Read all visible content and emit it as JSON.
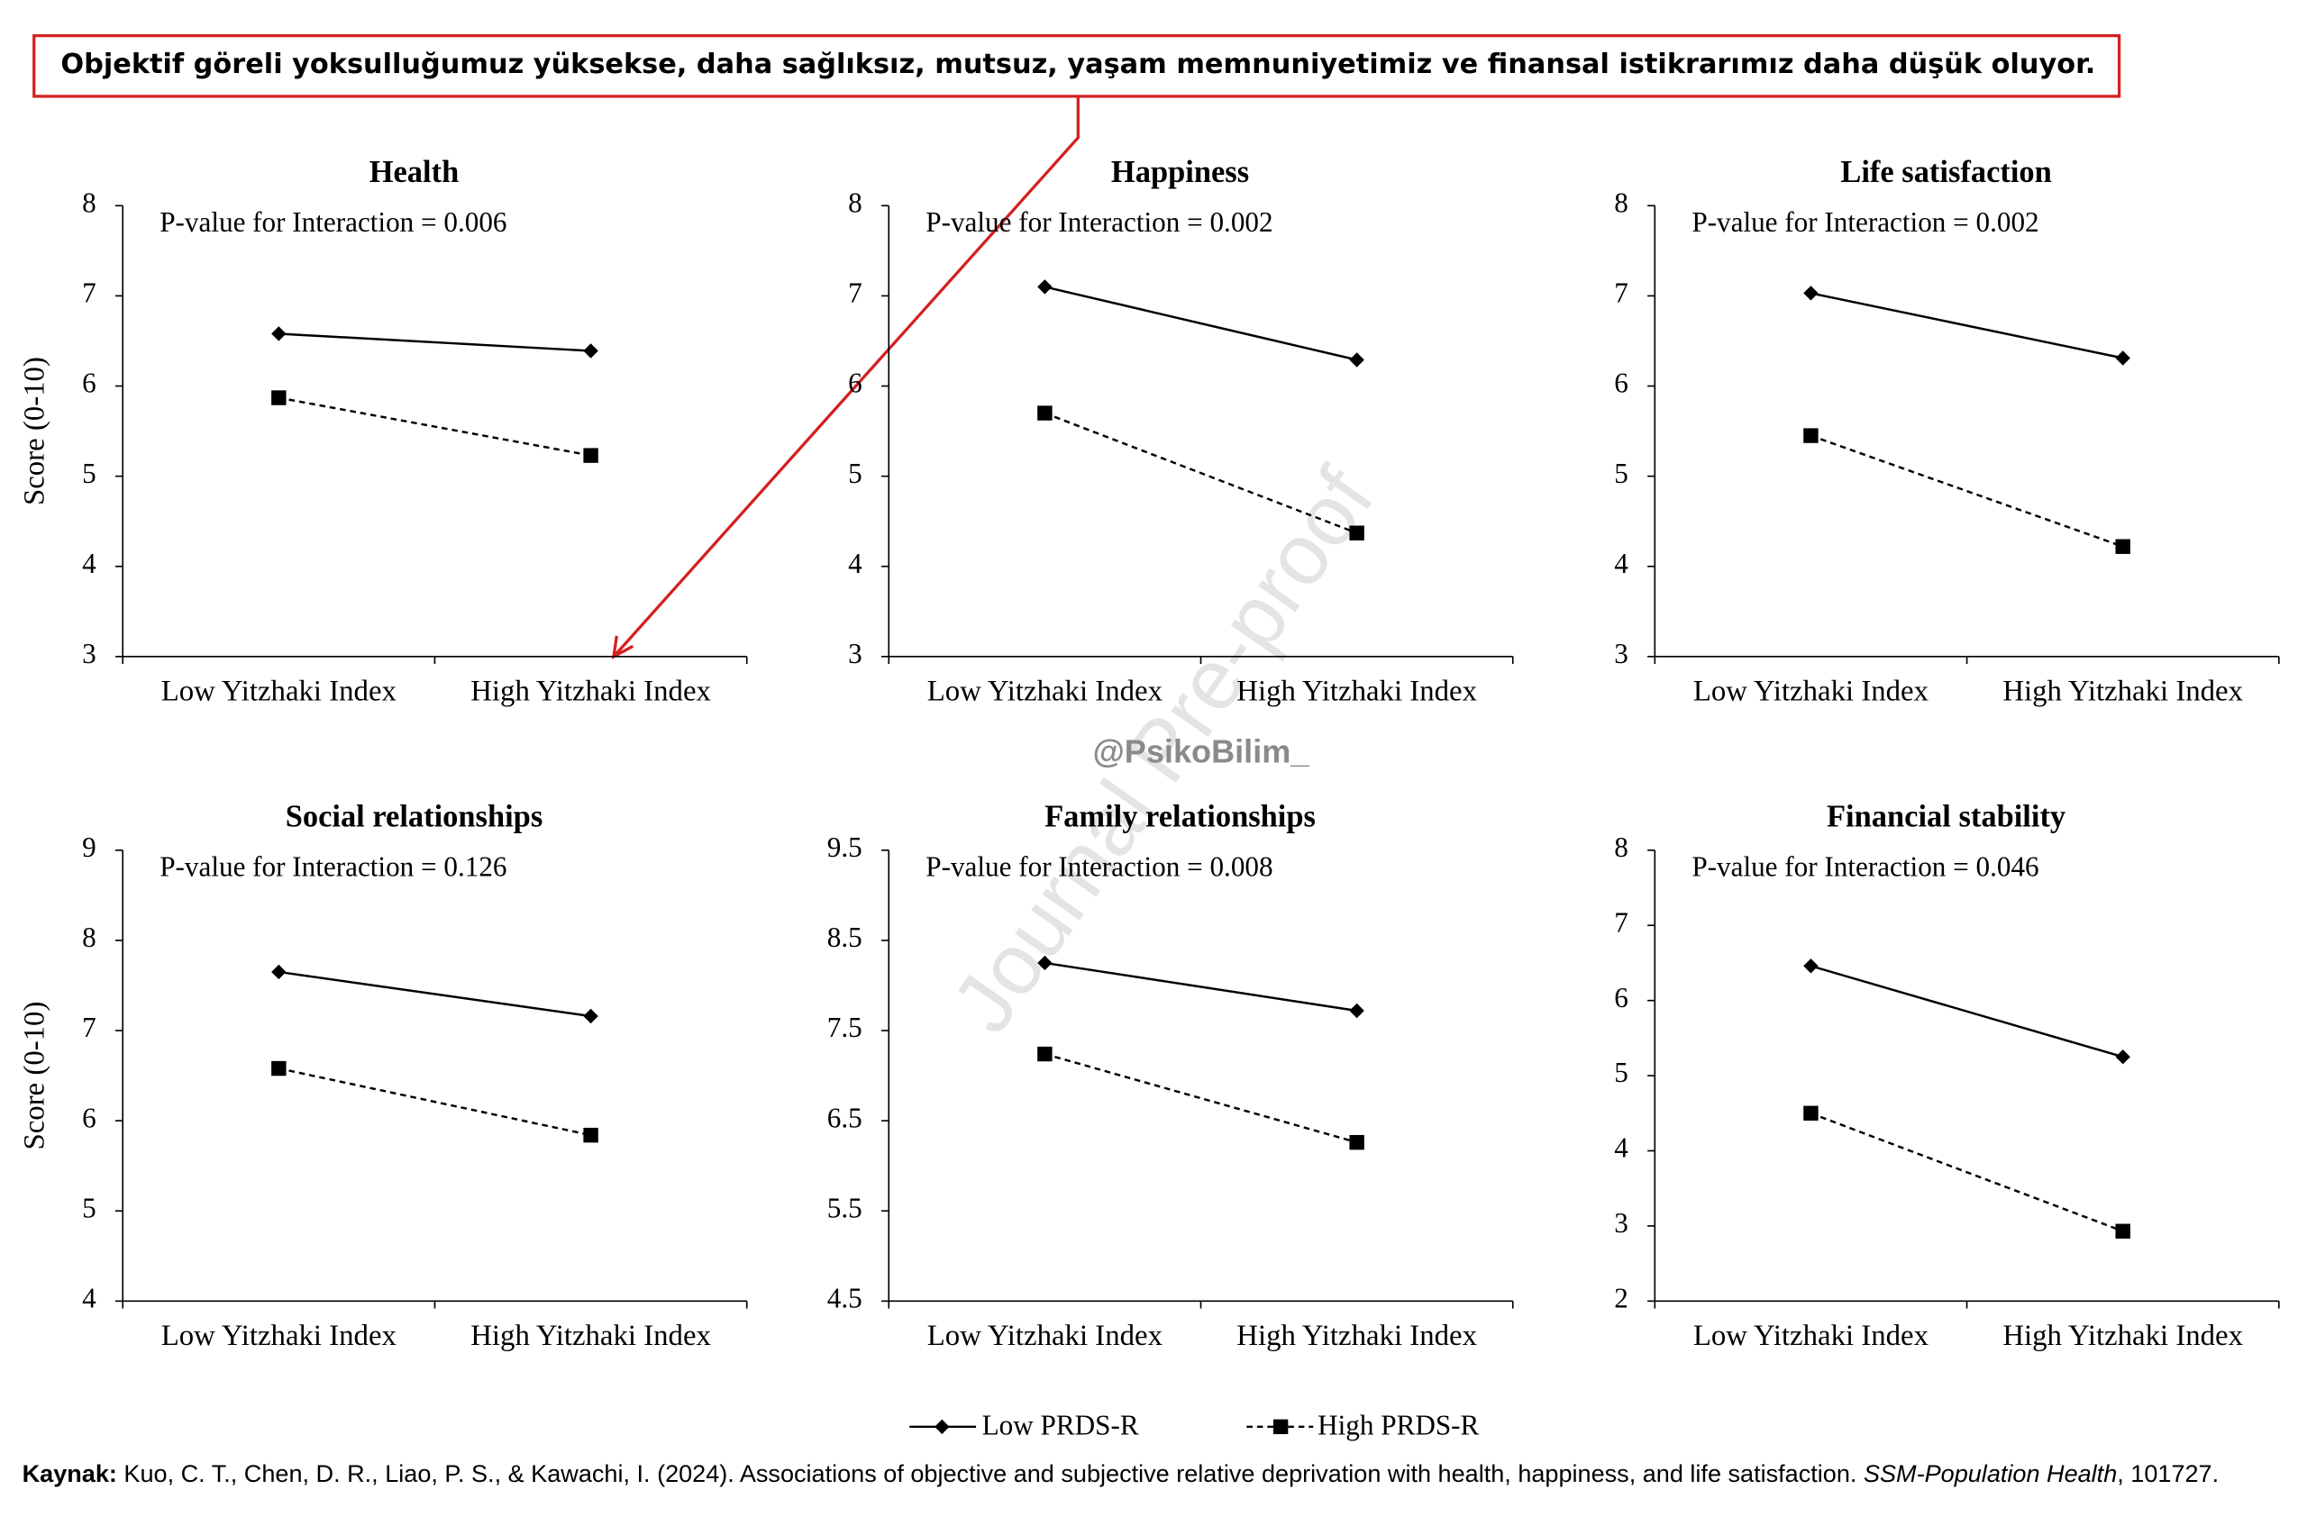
{
  "annotation": "Objektif göreli yoksulluğumuz yüksekse, daha sağlıksız, mutsuz, yaşam memnuniyetimiz ve finansal istikrarımız daha düşük oluyor.",
  "watermark": "Journal Pre-proof",
  "handle": "@PsikoBilim_",
  "source": {
    "label": "Kaynak:",
    "text": " Kuo, C. T., Chen, D. R., Liao, P. S., & Kawachi, I. (2024). Associations of objective and subjective relative deprivation with health, happiness, and life satisfaction. ",
    "journal": "SSM-Population Health",
    "tail": ", 101727."
  },
  "chart_data": [
    {
      "type": "line",
      "title": "Health",
      "subtitle": "P-value for Interaction = 0.006",
      "ylabel": "Score (0-10)",
      "categories": [
        "Low Yitzhaki Index",
        "High Yitzhaki Index"
      ],
      "series": [
        {
          "name": "Low PRDS-R",
          "color": "#000000",
          "values": [
            6.58,
            6.39
          ]
        },
        {
          "name": "High PRDS-R",
          "color": "#000000",
          "values": [
            5.87,
            5.23
          ]
        }
      ],
      "ylim": [
        3,
        8
      ],
      "yticks": [
        3,
        4,
        5,
        6,
        7,
        8
      ]
    },
    {
      "type": "line",
      "title": "Happiness",
      "subtitle": "P-value for Interaction = 0.002",
      "categories": [
        "Low Yitzhaki Index",
        "High Yitzhaki Index"
      ],
      "series": [
        {
          "name": "Low PRDS-R",
          "color": "#000000",
          "values": [
            7.1,
            6.29
          ]
        },
        {
          "name": "High PRDS-R",
          "color": "#000000",
          "values": [
            5.7,
            4.37
          ]
        }
      ],
      "ylim": [
        3,
        8
      ],
      "yticks": [
        3,
        4,
        5,
        6,
        7,
        8
      ]
    },
    {
      "type": "line",
      "title": "Life satisfaction",
      "subtitle": "P-value for Interaction = 0.002",
      "categories": [
        "Low Yitzhaki Index",
        "High Yitzhaki Index"
      ],
      "series": [
        {
          "name": "Low PRDS-R",
          "color": "#000000",
          "values": [
            7.03,
            6.31
          ]
        },
        {
          "name": "High PRDS-R",
          "color": "#000000",
          "values": [
            5.45,
            4.22
          ]
        }
      ],
      "ylim": [
        3,
        8
      ],
      "yticks": [
        3,
        4,
        5,
        6,
        7,
        8
      ]
    },
    {
      "type": "line",
      "title": "Social relationships",
      "subtitle": "P-value for Interaction = 0.126",
      "ylabel": "Score (0-10)",
      "categories": [
        "Low Yitzhaki Index",
        "High Yitzhaki Index"
      ],
      "series": [
        {
          "name": "Low PRDS-R",
          "color": "#000000",
          "values": [
            7.65,
            7.16
          ]
        },
        {
          "name": "High PRDS-R",
          "color": "#000000",
          "values": [
            6.58,
            5.84
          ]
        }
      ],
      "ylim": [
        4,
        9
      ],
      "yticks": [
        4,
        5,
        6,
        7,
        8,
        9
      ]
    },
    {
      "type": "line",
      "title": "Family relationships",
      "subtitle": "P-value for Interaction = 0.008",
      "categories": [
        "Low Yitzhaki Index",
        "High Yitzhaki Index"
      ],
      "series": [
        {
          "name": "Low PRDS-R",
          "color": "#000000",
          "values": [
            8.25,
            7.72
          ]
        },
        {
          "name": "High PRDS-R",
          "color": "#000000",
          "values": [
            7.24,
            6.26
          ]
        }
      ],
      "ylim": [
        4.5,
        9.5
      ],
      "yticks": [
        4.5,
        5.5,
        6.5,
        7.5,
        8.5,
        9.5
      ]
    },
    {
      "type": "line",
      "title": "Financial stability",
      "subtitle": "P-value for Interaction = 0.046",
      "categories": [
        "Low Yitzhaki Index",
        "High Yitzhaki Index"
      ],
      "series": [
        {
          "name": "Low PRDS-R",
          "color": "#000000",
          "values": [
            6.46,
            5.25
          ]
        },
        {
          "name": "High PRDS-R",
          "color": "#000000",
          "values": [
            4.5,
            2.93
          ]
        }
      ],
      "ylim": [
        2,
        8
      ],
      "yticks": [
        2,
        3,
        4,
        5,
        6,
        7,
        8
      ]
    }
  ]
}
